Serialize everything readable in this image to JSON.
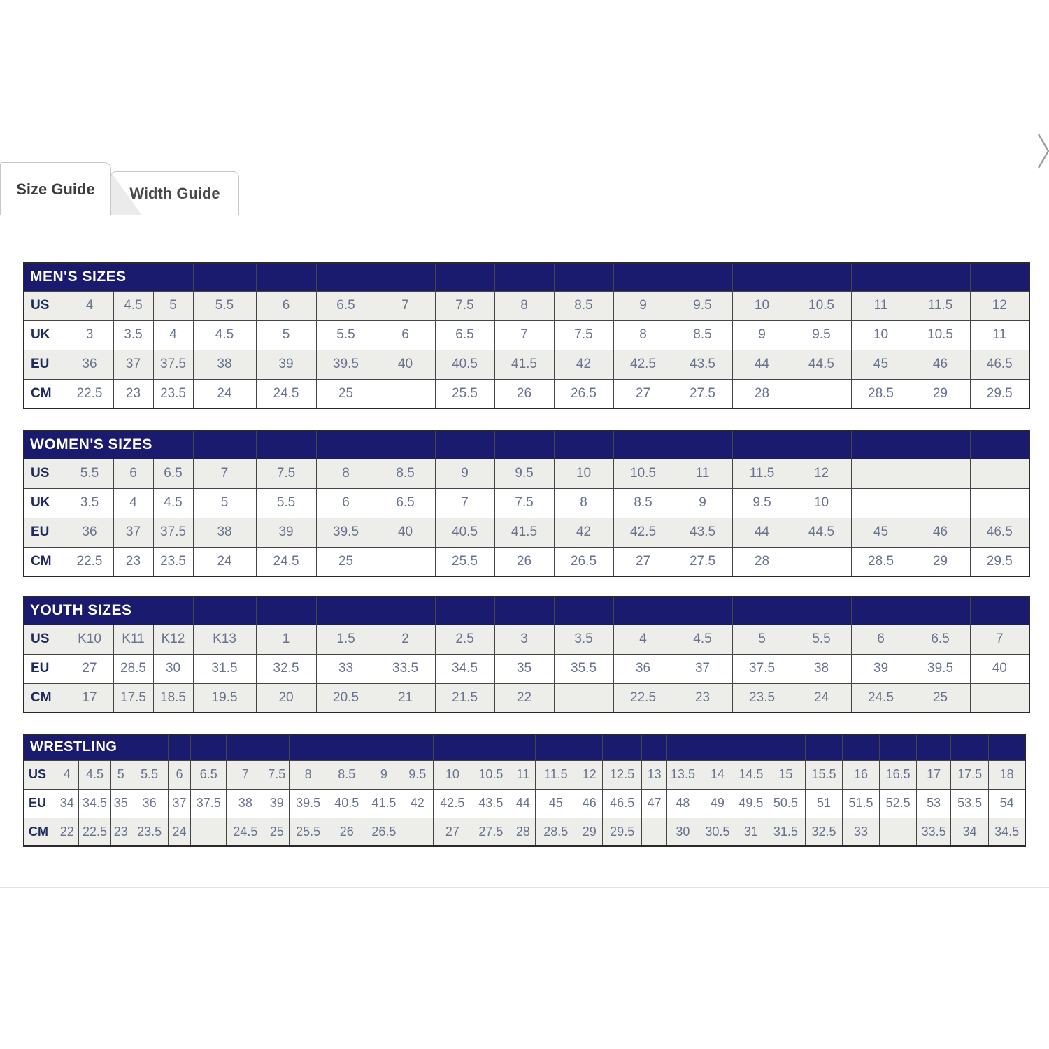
{
  "tabs": [
    {
      "label": "Size Guide",
      "active": true
    },
    {
      "label": "Width Guide",
      "active": false
    }
  ],
  "icons": {
    "chevron_right": "chevron pointing right, clipped at page edge"
  },
  "colors": {
    "header_navy": "#1a1a6e",
    "cell_text": "#68748f",
    "label_text": "#1e2b5c",
    "row_shade": "#ededea"
  },
  "tables": [
    {
      "title": "MEN'S SIZES",
      "rows": [
        {
          "label": "US",
          "values": [
            "4",
            "4.5",
            "5",
            "5.5",
            "6",
            "6.5",
            "7",
            "7.5",
            "8",
            "8.5",
            "9",
            "9.5",
            "10",
            "10.5",
            "11",
            "11.5",
            "12"
          ]
        },
        {
          "label": "UK",
          "values": [
            "3",
            "3.5",
            "4",
            "4.5",
            "5",
            "5.5",
            "6",
            "6.5",
            "7",
            "7.5",
            "8",
            "8.5",
            "9",
            "9.5",
            "10",
            "10.5",
            "11"
          ]
        },
        {
          "label": "EU",
          "values": [
            "36",
            "37",
            "37.5",
            "38",
            "39",
            "39.5",
            "40",
            "40.5",
            "41.5",
            "42",
            "42.5",
            "43.5",
            "44",
            "44.5",
            "45",
            "46",
            "46.5"
          ]
        },
        {
          "label": "CM",
          "values": [
            "22.5",
            "23",
            "23.5",
            "24",
            "24.5",
            "25",
            "",
            "25.5",
            "26",
            "26.5",
            "27",
            "27.5",
            "28",
            "",
            "28.5",
            "29",
            "29.5"
          ]
        }
      ]
    },
    {
      "title": "WOMEN'S SIZES",
      "rows": [
        {
          "label": "US",
          "values": [
            "5.5",
            "6",
            "6.5",
            "7",
            "7.5",
            "8",
            "8.5",
            "9",
            "9.5",
            "10",
            "10.5",
            "11",
            "11.5",
            "12",
            "",
            "",
            ""
          ]
        },
        {
          "label": "UK",
          "values": [
            "3.5",
            "4",
            "4.5",
            "5",
            "5.5",
            "6",
            "6.5",
            "7",
            "7.5",
            "8",
            "8.5",
            "9",
            "9.5",
            "10",
            "",
            "",
            ""
          ]
        },
        {
          "label": "EU",
          "values": [
            "36",
            "37",
            "37.5",
            "38",
            "39",
            "39.5",
            "40",
            "40.5",
            "41.5",
            "42",
            "42.5",
            "43.5",
            "44",
            "44.5",
            "45",
            "46",
            "46.5"
          ]
        },
        {
          "label": "CM",
          "values": [
            "22.5",
            "23",
            "23.5",
            "24",
            "24.5",
            "25",
            "",
            "25.5",
            "26",
            "26.5",
            "27",
            "27.5",
            "28",
            "",
            "28.5",
            "29",
            "29.5"
          ]
        }
      ]
    },
    {
      "title": "YOUTH SIZES",
      "rows": [
        {
          "label": "US",
          "values": [
            "K10",
            "K11",
            "K12",
            "K13",
            "1",
            "1.5",
            "2",
            "2.5",
            "3",
            "3.5",
            "4",
            "4.5",
            "5",
            "5.5",
            "6",
            "6.5",
            "7"
          ]
        },
        {
          "label": "EU",
          "values": [
            "27",
            "28.5",
            "30",
            "31.5",
            "32.5",
            "33",
            "33.5",
            "34.5",
            "35",
            "35.5",
            "36",
            "37",
            "37.5",
            "38",
            "39",
            "39.5",
            "40"
          ]
        },
        {
          "label": "CM",
          "values": [
            "17",
            "17.5",
            "18.5",
            "19.5",
            "20",
            "20.5",
            "21",
            "21.5",
            "22",
            "",
            "22.5",
            "23",
            "23.5",
            "24",
            "24.5",
            "25",
            ""
          ]
        }
      ]
    },
    {
      "title": "WRESTLING",
      "rows": [
        {
          "label": "US",
          "values": [
            "4",
            "4.5",
            "5",
            "5.5",
            "6",
            "6.5",
            "7",
            "7.5",
            "8",
            "8.5",
            "9",
            "9.5",
            "10",
            "10.5",
            "11",
            "11.5",
            "12",
            "12.5",
            "13",
            "13.5",
            "14",
            "14.5",
            "15",
            "15.5",
            "16",
            "16.5",
            "17",
            "17.5",
            "18"
          ]
        },
        {
          "label": "EU",
          "values": [
            "34",
            "34.5",
            "35",
            "36",
            "37",
            "37.5",
            "38",
            "39",
            "39.5",
            "40.5",
            "41.5",
            "42",
            "42.5",
            "43.5",
            "44",
            "45",
            "46",
            "46.5",
            "47",
            "48",
            "49",
            "49.5",
            "50.5",
            "51",
            "51.5",
            "52.5",
            "53",
            "53.5",
            "54"
          ]
        },
        {
          "label": "CM",
          "values": [
            "22",
            "22.5",
            "23",
            "23.5",
            "24",
            "",
            "24.5",
            "25",
            "25.5",
            "26",
            "26.5",
            "",
            "27",
            "27.5",
            "28",
            "28.5",
            "29",
            "29.5",
            "",
            "30",
            "30.5",
            "31",
            "31.5",
            "32.5",
            "33",
            "",
            "33.5",
            "34",
            "34.5"
          ]
        }
      ]
    }
  ]
}
